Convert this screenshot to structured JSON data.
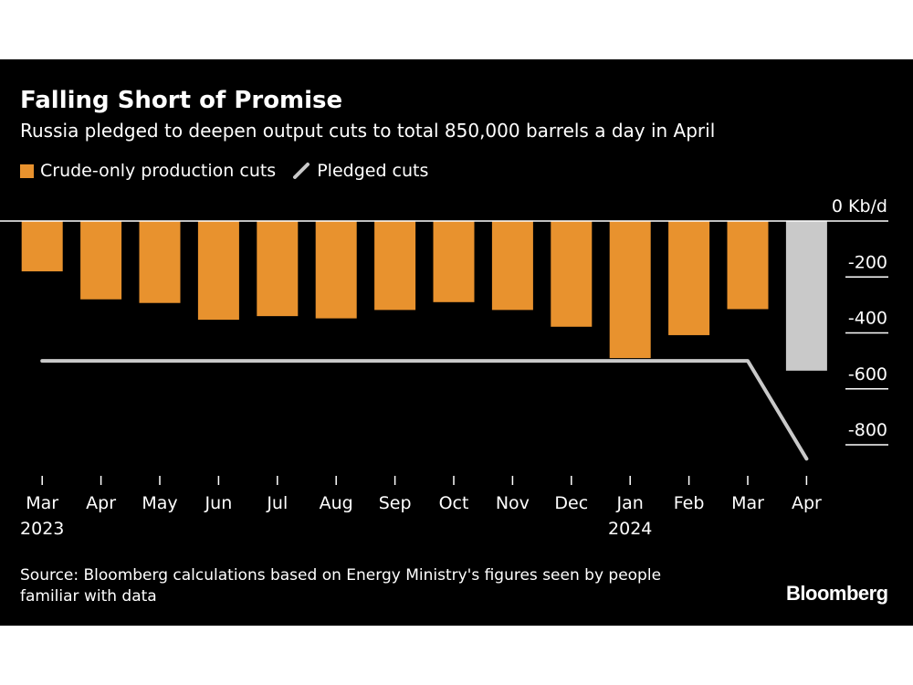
{
  "header": {
    "title": "Falling Short of Promise",
    "subtitle": "Russia pledged to deepen output cuts to total 850,000 barrels a day in April"
  },
  "legend": {
    "items": [
      {
        "label": "Crude-only production cuts",
        "icon": "square-swatch-icon",
        "color": "#e8922e"
      },
      {
        "label": "Pledged cuts",
        "icon": "line-swatch-icon",
        "color": "#c9c9c9"
      }
    ]
  },
  "chart_data": {
    "type": "bar",
    "categories": [
      "Mar",
      "Apr",
      "May",
      "Jun",
      "Jul",
      "Aug",
      "Sep",
      "Oct",
      "Nov",
      "Dec",
      "Jan",
      "Feb",
      "Mar",
      "Apr"
    ],
    "year_labels": [
      {
        "category_index": 0,
        "label": "2023"
      },
      {
        "category_index": 10,
        "label": "2024"
      }
    ],
    "series": [
      {
        "name": "Crude-only production cuts",
        "type": "bar",
        "color": "#e8922e",
        "values": [
          -180,
          -280,
          -293,
          -353,
          -340,
          -348,
          -318,
          -290,
          -318,
          -378,
          -490,
          -408,
          -315,
          null
        ]
      },
      {
        "name": "",
        "type": "bar",
        "color": "#c9c9c9",
        "note_visible": false,
        "values": [
          null,
          null,
          null,
          null,
          null,
          null,
          null,
          null,
          null,
          null,
          null,
          null,
          null,
          -535
        ]
      },
      {
        "name": "Pledged cuts",
        "type": "line",
        "color": "#c9c9c9",
        "values": [
          -500,
          -500,
          -500,
          -500,
          -500,
          -500,
          -500,
          -500,
          -500,
          -500,
          -500,
          -500,
          -500,
          -850
        ]
      }
    ],
    "y_axis": {
      "ticks": [
        0,
        -200,
        -400,
        -600,
        -800
      ],
      "tick_labels": [
        "0 Kb/d",
        "-200",
        "-400",
        "-600",
        "-800"
      ],
      "ylim": [
        -900,
        0
      ],
      "position": "right"
    },
    "grid": false
  },
  "footer": {
    "source": "Source: Bloomberg calculations based on Energy Ministry's figures seen by people familiar with data",
    "logo": "Bloomberg"
  },
  "colors": {
    "background": "#000000",
    "text": "#ffffff",
    "bar": "#e8922e",
    "pledge": "#c9c9c9"
  }
}
